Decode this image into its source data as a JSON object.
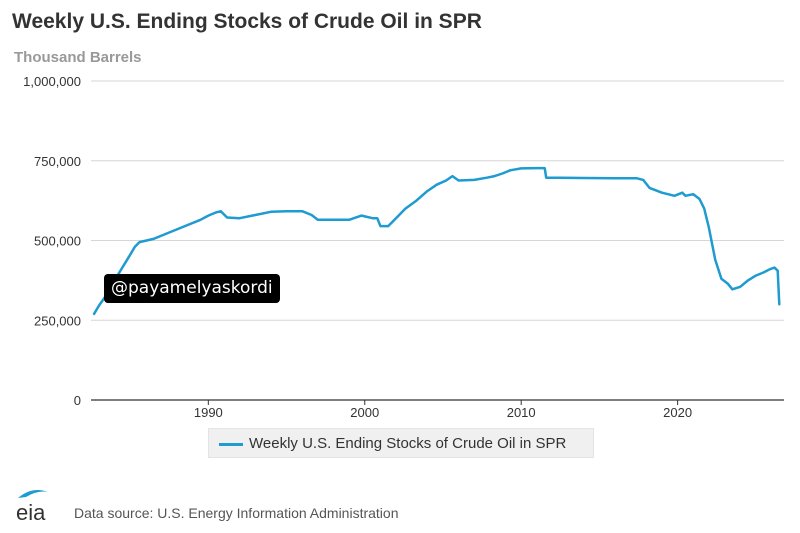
{
  "header": {
    "title": "Weekly U.S. Ending Stocks of Crude Oil in SPR",
    "units": "Thousand Barrels"
  },
  "watermark": "@payamelyaskordi",
  "footer": {
    "logo_text": "eia",
    "source": "Data source: U.S. Energy Information Administration"
  },
  "colors": {
    "series": "#1e9bd0",
    "grid": "#d6d6d6",
    "axis": "#333333"
  },
  "chart_data": {
    "type": "line",
    "title": "Weekly U.S. Ending Stocks of Crude Oil in SPR",
    "ylabel": "Thousand Barrels",
    "xlabel": "",
    "xlim": [
      1982.5,
      2026.8
    ],
    "ylim": [
      0,
      1000000
    ],
    "yticks": [
      0,
      250000,
      500000,
      750000,
      1000000
    ],
    "ytick_labels": [
      "0",
      "250,000",
      "500,000",
      "750,000",
      "1,000,000"
    ],
    "xticks": [
      1990,
      2000,
      2010,
      2020
    ],
    "xtick_labels": [
      "1990",
      "2000",
      "2010",
      "2020"
    ],
    "grid": true,
    "legend_position": "bottom",
    "series": [
      {
        "name": "Weekly U.S. Ending Stocks of Crude Oil in SPR",
        "x": [
          1982.7,
          1983.0,
          1983.5,
          1984.0,
          1984.5,
          1985.0,
          1985.3,
          1985.6,
          1986.5,
          1987.5,
          1988.5,
          1989.5,
          1990.0,
          1990.5,
          1990.8,
          1991.2,
          1992.0,
          1993.0,
          1994.0,
          1995.0,
          1996.0,
          1996.6,
          1997.0,
          1998.0,
          1999.0,
          1999.8,
          2000.5,
          2000.8,
          2001.0,
          2001.5,
          2002.0,
          2002.6,
          2003.3,
          2004.0,
          2004.6,
          2005.2,
          2005.6,
          2006.0,
          2007.0,
          2007.8,
          2008.3,
          2008.8,
          2009.3,
          2010.0,
          2011.0,
          2011.5,
          2011.6,
          2012.5,
          2014.0,
          2016.0,
          2017.4,
          2017.8,
          2018.2,
          2019.0,
          2019.8,
          2020.3,
          2020.5,
          2021.0,
          2021.4,
          2021.7,
          2022.0,
          2022.4,
          2022.8,
          2023.2,
          2023.5,
          2024.0,
          2024.5,
          2025.0,
          2025.5,
          2025.9,
          2026.2,
          2026.4,
          2026.5
        ],
        "values": [
          270000,
          295000,
          330000,
          375000,
          415000,
          455000,
          480000,
          495000,
          505000,
          525000,
          545000,
          565000,
          578000,
          588000,
          592000,
          572000,
          570000,
          580000,
          590000,
          592000,
          592000,
          580000,
          565000,
          565000,
          565000,
          578000,
          570000,
          570000,
          545000,
          545000,
          570000,
          600000,
          625000,
          655000,
          675000,
          688000,
          702000,
          688000,
          690000,
          697000,
          702000,
          710000,
          720000,
          726000,
          727000,
          727000,
          697000,
          697000,
          696000,
          695000,
          695000,
          690000,
          665000,
          650000,
          640000,
          650000,
          640000,
          645000,
          630000,
          600000,
          540000,
          440000,
          380000,
          365000,
          347000,
          355000,
          375000,
          390000,
          400000,
          410000,
          415000,
          405000,
          300000
        ]
      }
    ]
  }
}
